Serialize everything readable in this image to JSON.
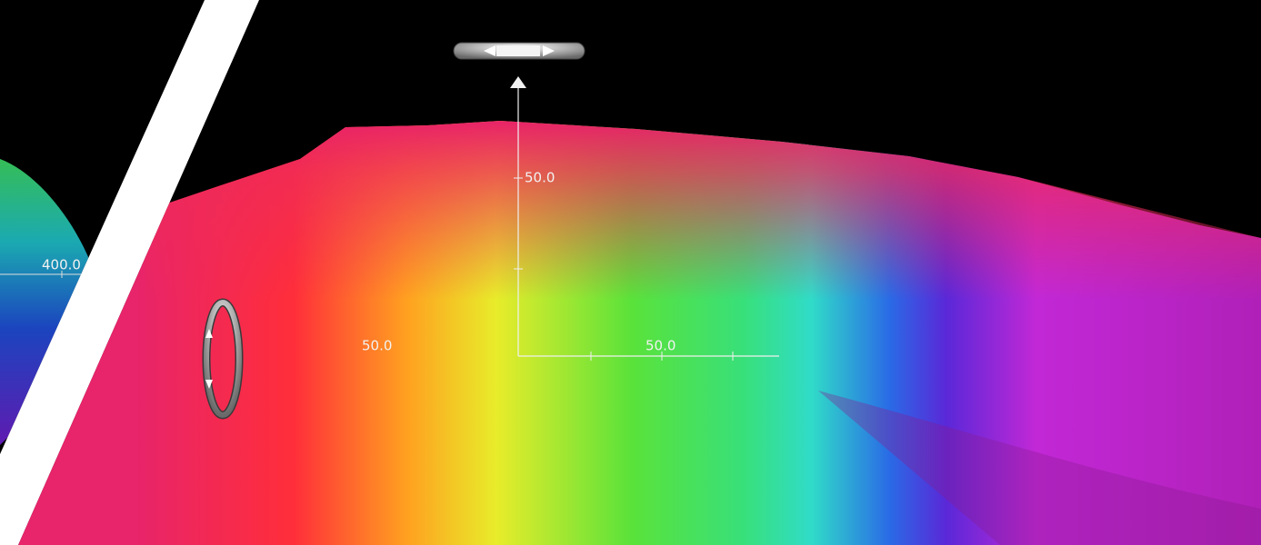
{
  "left_panel": {
    "axis_label": "400.0"
  },
  "main_panel": {
    "axis_labels": [
      "50.0",
      "50.0",
      "50.0"
    ]
  }
}
